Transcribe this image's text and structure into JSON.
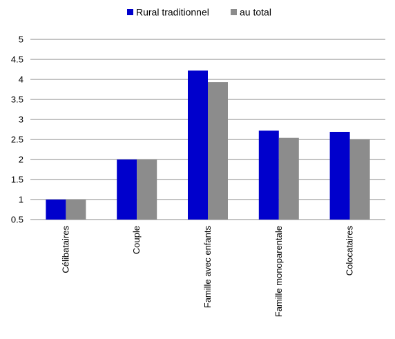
{
  "chart_data": {
    "type": "bar",
    "categories": [
      "Célibataires",
      "Couple",
      "Famille avec enfants",
      "Famille monoparentale",
      "Colocataires"
    ],
    "series": [
      {
        "name": "Rural traditionnel",
        "color": "#0000cc",
        "values": [
          1.0,
          2.0,
          4.22,
          2.72,
          2.69
        ]
      },
      {
        "name": "au total",
        "color": "#8c8c8c",
        "values": [
          1.0,
          2.0,
          3.93,
          2.54,
          2.51
        ]
      }
    ],
    "y_ticks": [
      "0.5",
      "1",
      "1.5",
      "2",
      "2.5",
      "3",
      "3.5",
      "4",
      "4.5",
      "5"
    ],
    "ylim": [
      0.5,
      5
    ],
    "grid": true,
    "legend_position": "top-center"
  }
}
